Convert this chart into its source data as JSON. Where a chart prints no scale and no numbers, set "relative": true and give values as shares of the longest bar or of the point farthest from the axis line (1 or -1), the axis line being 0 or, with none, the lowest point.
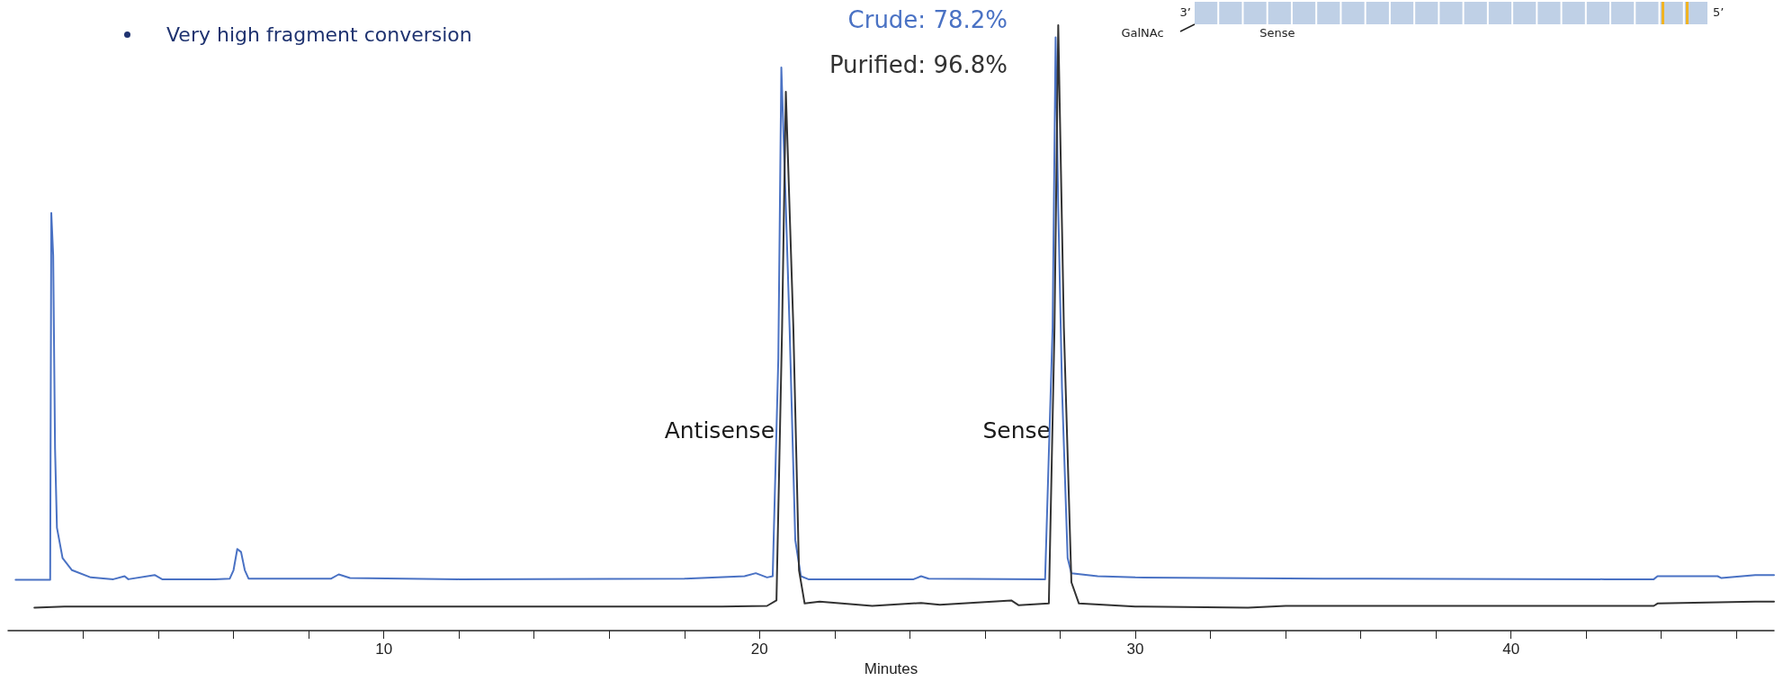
{
  "chart_data": {
    "type": "line",
    "relative": true,
    "title": "Very high fragment conversion",
    "xlabel": "Minutes",
    "xlim": [
      0,
      47
    ],
    "xticks": [
      {
        "value": 2,
        "label": null
      },
      {
        "value": 4,
        "label": null
      },
      {
        "value": 6,
        "label": null
      },
      {
        "value": 8,
        "label": null
      },
      10,
      {
        "value": 12,
        "label": null
      },
      {
        "value": 14,
        "label": null
      },
      {
        "value": 16,
        "label": null
      },
      {
        "value": 18,
        "label": null
      },
      20,
      {
        "value": 22,
        "label": null
      },
      {
        "value": 24,
        "label": null
      },
      {
        "value": 26,
        "label": null
      },
      {
        "value": 28,
        "label": null
      },
      30,
      {
        "value": 32,
        "label": null
      },
      {
        "value": 34,
        "label": null
      },
      {
        "value": 36,
        "label": null
      },
      {
        "value": 38,
        "label": null
      },
      40,
      {
        "value": 42,
        "label": null
      },
      {
        "value": 44,
        "label": null
      },
      {
        "value": 46,
        "label": null
      }
    ],
    "grid": false,
    "legend": false,
    "marker": "none",
    "line_style": "solid",
    "series": [
      {
        "name": "Crude: 78.2%",
        "color": "#4a72c4",
        "x": [
          0.2,
          1.12,
          1.15,
          1.2,
          1.25,
          1.3,
          1.45,
          1.7,
          2.2,
          2.8,
          3.1,
          3.2,
          3.9,
          4.1,
          5.5,
          5.9,
          6.0,
          6.1,
          6.2,
          6.3,
          6.4,
          8.6,
          8.8,
          9.1,
          12,
          18,
          19.6,
          19.9,
          20.2,
          20.35,
          20.5,
          20.58,
          20.7,
          20.8,
          20.95,
          21.1,
          21.3,
          24.1,
          24.3,
          24.5,
          27.6,
          27.8,
          27.88,
          27.95,
          28.05,
          28.2,
          28.3,
          29,
          30,
          35,
          42.5,
          43.8,
          43.9,
          45.5,
          45.6,
          46.5,
          47
        ],
        "values": [
          0.084,
          0.084,
          0.69,
          0.62,
          0.3,
          0.17,
          0.12,
          0.1,
          0.088,
          0.085,
          0.09,
          0.085,
          0.092,
          0.085,
          0.085,
          0.086,
          0.1,
          0.135,
          0.13,
          0.1,
          0.086,
          0.086,
          0.093,
          0.087,
          0.085,
          0.086,
          0.09,
          0.095,
          0.088,
          0.09,
          0.45,
          0.93,
          0.7,
          0.5,
          0.15,
          0.09,
          0.085,
          0.085,
          0.09,
          0.086,
          0.085,
          0.5,
          0.98,
          0.7,
          0.4,
          0.12,
          0.095,
          0.09,
          0.088,
          0.086,
          0.085,
          0.085,
          0.09,
          0.09,
          0.087,
          0.092,
          0.092
        ]
      },
      {
        "name": "Purified: 96.8%",
        "color": "#333333",
        "x": [
          0.7,
          1.5,
          19,
          20.2,
          20.45,
          20.6,
          20.7,
          20.9,
          21.05,
          21.2,
          21.6,
          23,
          24.3,
          24.8,
          26.7,
          26.9,
          27.7,
          27.85,
          27.95,
          28.1,
          28.3,
          28.5,
          30,
          33,
          34,
          43.8,
          43.9,
          46.5,
          47
        ],
        "values": [
          0.038,
          0.04,
          0.04,
          0.041,
          0.05,
          0.5,
          0.89,
          0.5,
          0.1,
          0.045,
          0.048,
          0.041,
          0.046,
          0.043,
          0.05,
          0.042,
          0.045,
          0.5,
          1.0,
          0.5,
          0.08,
          0.045,
          0.04,
          0.038,
          0.041,
          0.041,
          0.045,
          0.048,
          0.048
        ]
      }
    ],
    "annotations": [
      {
        "text": "Antisense",
        "x": 20.4,
        "y": 0.33
      },
      {
        "text": "Sense",
        "x": 27.75,
        "y": 0.33
      },
      "3’",
      "5’",
      "GalNAc",
      "Sense"
    ]
  }
}
